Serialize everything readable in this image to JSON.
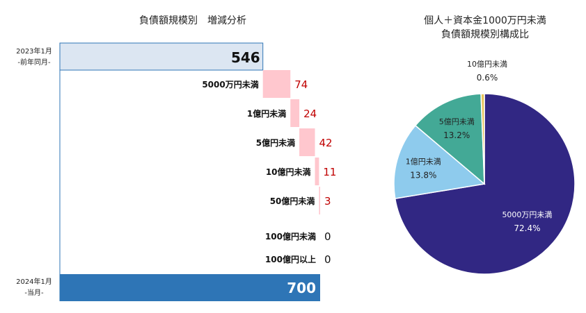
{
  "waterfall": {
    "title": "負債額規模別　増減分析",
    "start": {
      "label_line1": "2023年1月",
      "label_line2": "-前年同月-",
      "value": 546
    },
    "end": {
      "label_line1": "2024年1月",
      "label_line2": "-当月-",
      "value": 700
    },
    "steps": [
      {
        "category": "5000万円未満",
        "value": 74
      },
      {
        "category": "1億円未満",
        "value": 24
      },
      {
        "category": "5億円未満",
        "value": 42
      },
      {
        "category": "10億円未満",
        "value": 11
      },
      {
        "category": "50億円未満",
        "value": 3
      },
      {
        "category": "100億円未満",
        "value": 0
      },
      {
        "category": "100億円以上",
        "value": 0
      }
    ],
    "colors": {
      "start_fill": "#dce6f2",
      "start_stroke": "#2e75b6",
      "step": "#ffc7ce",
      "step_label": "#c00000",
      "end_fill": "#2e75b6"
    }
  },
  "pie": {
    "title_line1": "個人＋資本金1000万円未満",
    "title_line2": "負債額規模別構成比",
    "slices": [
      {
        "label": "5000万円未満",
        "pct_label": "72.4%",
        "value": 72.4,
        "color": "#312783",
        "text_color": "#ffffff"
      },
      {
        "label": "1億円未満",
        "pct_label": "13.8%",
        "value": 13.8,
        "color": "#8ecbed",
        "text_color": "#222222"
      },
      {
        "label": "5億円未満",
        "pct_label": "13.2%",
        "value": 13.2,
        "color": "#43a996",
        "text_color": "#222222"
      },
      {
        "label": "10億円未満",
        "pct_label": "0.6%",
        "value": 0.6,
        "color": "#e8c45a",
        "text_color": "#222222"
      }
    ]
  },
  "chart_data": [
    {
      "type": "bar",
      "title": "負債額規模別　増減分析",
      "categories": [
        "2023年1月 -前年同月-",
        "5000万円未満",
        "1億円未満",
        "5億円未満",
        "10億円未満",
        "50億円未満",
        "100億円未満",
        "100億円以上",
        "2024年1月 -当月-"
      ],
      "values": [
        546,
        74,
        24,
        42,
        11,
        3,
        0,
        0,
        700
      ]
    },
    {
      "type": "pie",
      "title": "個人＋資本金1000万円未満 負債額規模別構成比",
      "categories": [
        "5000万円未満",
        "1億円未満",
        "5億円未満",
        "10億円未満"
      ],
      "values": [
        72.4,
        13.8,
        13.2,
        0.6
      ]
    }
  ]
}
